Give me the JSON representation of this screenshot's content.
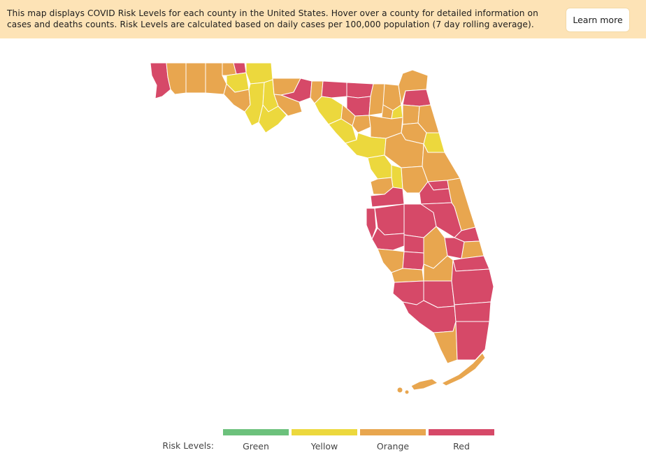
{
  "banner": {
    "text": "This map displays COVID Risk Levels for each county in the United States. Hover over a county for detailed information on cases and deaths counts. Risk Levels are calculated based on daily cases per 100,000 population (7 day rolling average).",
    "button_label": "Learn more"
  },
  "map": {
    "state": "Florida",
    "colors": {
      "green": "#6cc17c",
      "yellow": "#ecd83d",
      "orange": "#e8a64f",
      "red": "#d64968",
      "background": "#ffffff",
      "banner": "#fde3b6"
    }
  },
  "legend": {
    "title": "Risk Levels:",
    "items": [
      {
        "label": "Green",
        "color": "#6cc17c"
      },
      {
        "label": "Yellow",
        "color": "#ecd83d"
      },
      {
        "label": "Orange",
        "color": "#e8a64f"
      },
      {
        "label": "Red",
        "color": "#d64968"
      }
    ]
  }
}
